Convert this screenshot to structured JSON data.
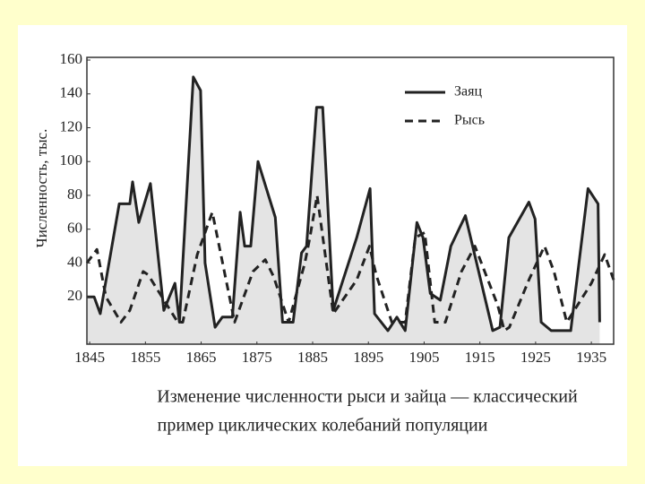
{
  "chart_data": {
    "type": "line",
    "y_label": "Численность, тыс.",
    "caption": [
      "Изменение численности рыси и зайца — классический",
      "пример циклических колебаний популяции"
    ],
    "xlim": [
      1844.5,
      1939
    ],
    "xticks": [
      1845,
      1855,
      1865,
      1875,
      1885,
      1895,
      1905,
      1915,
      1925,
      1935
    ],
    "ylim": [
      -8,
      161.6
    ],
    "yticks": [
      20,
      40,
      60,
      80,
      100,
      120,
      140,
      160
    ],
    "grid": false,
    "legend": "upper-right",
    "series": [
      {
        "name": "Заяц",
        "color": "#222222",
        "dash": "solid",
        "fill": "#e4e4e4",
        "x": [
          1844.5,
          1845.8,
          1846.9,
          1850.3,
          1852.2,
          1852.7,
          1853.8,
          1855.9,
          1858.3,
          1860.3,
          1861.1,
          1863.6,
          1864.9,
          1865.7,
          1867.5,
          1868.8,
          1870.6,
          1872,
          1872.8,
          1873.9,
          1875.2,
          1878.3,
          1879.6,
          1881.5,
          1883,
          1883.9,
          1885.7,
          1886.8,
          1888.7,
          1892.9,
          1895.3,
          1896.1,
          1898.5,
          1900.1,
          1901.6,
          1903.7,
          1904.8,
          1906.1,
          1907.9,
          1909.8,
          1912.4,
          1917.3,
          1918.6,
          1920.2,
          1923.8,
          1924.9,
          1926,
          1927.8,
          1931.3,
          1934.4,
          1936.2,
          1936.5
        ],
        "values": [
          20,
          20,
          10,
          75,
          75,
          88,
          64,
          87,
          12,
          28,
          5,
          150,
          142,
          40,
          2,
          8,
          8,
          70,
          50,
          50,
          100,
          67,
          5,
          5,
          46,
          50,
          132,
          132,
          12,
          55,
          84,
          10,
          0,
          8,
          0,
          64,
          55,
          22,
          18,
          50,
          68,
          0,
          2,
          55,
          76,
          66,
          5,
          0,
          0,
          84,
          75,
          5
        ]
      },
      {
        "name": "Рысь",
        "color": "#222222",
        "dash": "dashed",
        "x": [
          1844.5,
          1846.3,
          1847.9,
          1850.6,
          1852.2,
          1854.6,
          1855.5,
          1860.8,
          1861.7,
          1864.3,
          1867,
          1871,
          1874.3,
          1876.5,
          1878,
          1880.7,
          1883.6,
          1884.5,
          1885.8,
          1888.7,
          1892.9,
          1895.2,
          1896.4,
          1899.2,
          1901.6,
          1903.4,
          1905.1,
          1906.9,
          1908.8,
          1911.7,
          1914.1,
          1918.2,
          1919.4,
          1920.3,
          1923.8,
          1926.6,
          1928.3,
          1930.6,
          1935,
          1937.4,
          1939
        ],
        "values": [
          40,
          48,
          20,
          5,
          12,
          35,
          33,
          5,
          5,
          45,
          70,
          5,
          35,
          42,
          32,
          5,
          40,
          55,
          80,
          10,
          30,
          50,
          33,
          5,
          5,
          55,
          58,
          5,
          5,
          35,
          50,
          15,
          0,
          2,
          30,
          50,
          35,
          5,
          28,
          45,
          30
        ]
      }
    ]
  }
}
